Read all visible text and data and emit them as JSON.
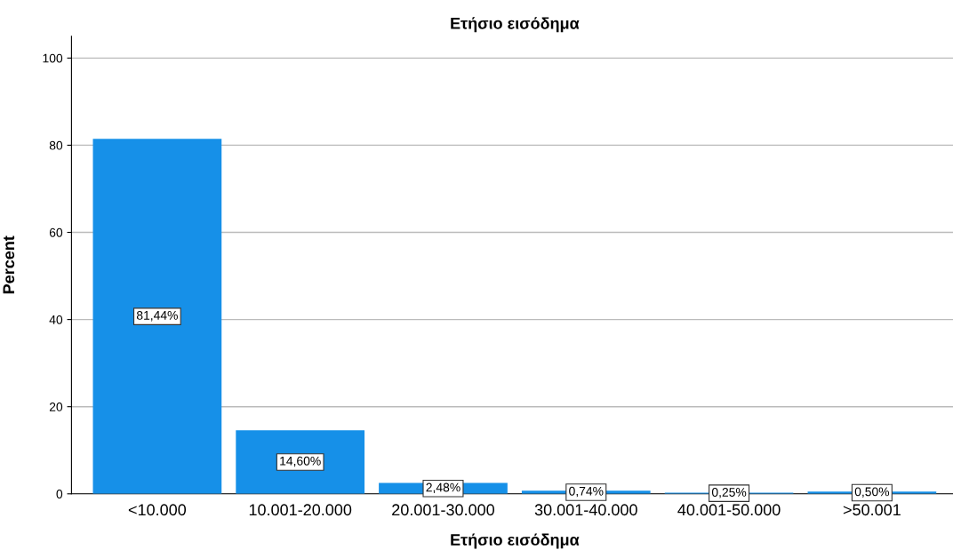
{
  "chart_data": {
    "type": "bar",
    "title": "Ετήσιο εισόδημα",
    "xlabel": "Ετήσιο εισόδημα",
    "ylabel": "Percent",
    "categories": [
      "<10.000",
      "10.001-20.000",
      "20.001-30.000",
      "30.001-40.000",
      "40.001-50.000",
      ">50.001"
    ],
    "values": [
      81.44,
      14.6,
      2.48,
      0.74,
      0.25,
      0.5
    ],
    "value_labels": [
      "81,44%",
      "14,60%",
      "2,48%",
      "0,74%",
      "0,25%",
      "0,50%"
    ],
    "color": "#1690e8",
    "ylim": [
      0,
      105
    ],
    "yticks": [
      0,
      20,
      40,
      60,
      80,
      100
    ],
    "grid": "y"
  }
}
